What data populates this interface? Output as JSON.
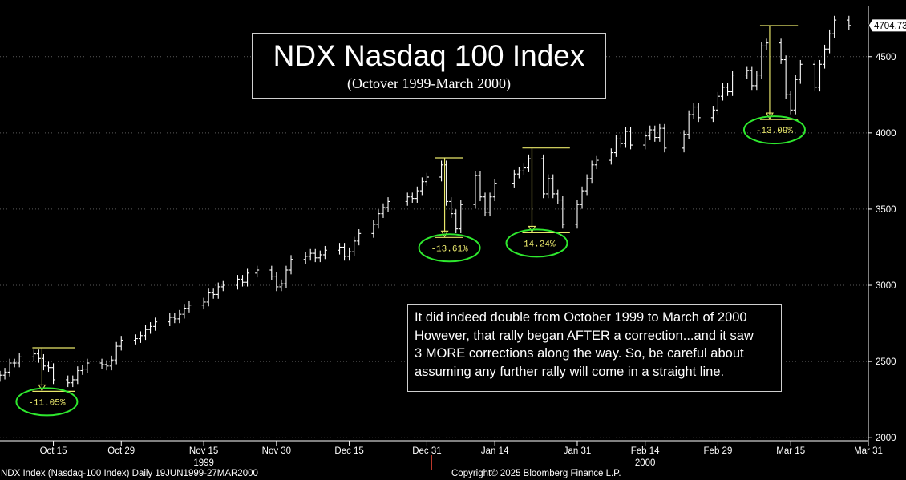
{
  "title_box": {
    "title": "NDX Nasdaq 100 Index",
    "subtitle": "(Octover 1999-March 2000)"
  },
  "annotation": {
    "lines": [
      "It did indeed double from October 1999 to March of 2000",
      "However, that rally began AFTER a correction...and it saw",
      "3 MORE corrections along the way.  So, be careful about",
      "assuming any further rally will come in a straight line."
    ]
  },
  "footer": {
    "left": "NDX Index (Nasdaq-100 Index) Daily 19JUN1999-27MAR2000",
    "right": "Copyright© 2025 Bloomberg Finance L.P."
  },
  "colors": {
    "background": "#000000",
    "bars": "#ffffff",
    "correction_lines": "#e8e66a",
    "correction_ellipse": "#2ee82e",
    "grid": "#5a5a5a"
  },
  "chart_data": {
    "type": "ohlc",
    "frequency": "Daily",
    "x_range": [
      "1999-10-04",
      "2000-03-31"
    ],
    "ylim": [
      1980,
      4830
    ],
    "grid": true,
    "grid_style": "dotted horizontal",
    "last_price": "4704.73",
    "y_ticks": [
      2000,
      2500,
      3000,
      3500,
      4000,
      4500
    ],
    "x_ticks": [
      {
        "date": "1999-10-15",
        "label": "Oct 15"
      },
      {
        "date": "1999-10-29",
        "label": "Oct 29"
      },
      {
        "date": "1999-11-15",
        "label": "Nov 15"
      },
      {
        "date": "1999-11-30",
        "label": "Nov 30"
      },
      {
        "date": "1999-12-15",
        "label": "Dec 15"
      },
      {
        "date": "1999-12-31",
        "label": "Dec 31"
      },
      {
        "date": "2000-01-14",
        "label": "Jan 14"
      },
      {
        "date": "2000-01-31",
        "label": "Jan 31"
      },
      {
        "date": "2000-02-14",
        "label": "Feb 14"
      },
      {
        "date": "2000-02-29",
        "label": "Feb 29"
      },
      {
        "date": "2000-03-15",
        "label": "Mar 15"
      },
      {
        "date": "2000-03-31",
        "label": "Mar 31"
      }
    ],
    "year_labels": [
      {
        "date": "1999-11-15",
        "label": "1999"
      },
      {
        "date": "2000-02-14",
        "label": "2000"
      }
    ],
    "closes": [
      [
        "1999-10-04",
        2410
      ],
      [
        "1999-10-05",
        2430
      ],
      [
        "1999-10-06",
        2490
      ],
      [
        "1999-10-07",
        2490
      ],
      [
        "1999-10-08",
        2530
      ],
      [
        "1999-10-11",
        2550
      ],
      [
        "1999-10-12",
        2520
      ],
      [
        "1999-10-13",
        2470
      ],
      [
        "1999-10-14",
        2460
      ],
      [
        "1999-10-15",
        2380
      ],
      [
        "1999-10-18",
        2360
      ],
      [
        "1999-10-19",
        2380
      ],
      [
        "1999-10-20",
        2440
      ],
      [
        "1999-10-21",
        2450
      ],
      [
        "1999-10-22",
        2490
      ],
      [
        "1999-10-25",
        2480
      ],
      [
        "1999-10-26",
        2470
      ],
      [
        "1999-10-27",
        2510
      ],
      [
        "1999-10-28",
        2600
      ],
      [
        "1999-10-29",
        2640
      ],
      [
        "1999-11-01",
        2650
      ],
      [
        "1999-11-02",
        2670
      ],
      [
        "1999-11-03",
        2710
      ],
      [
        "1999-11-04",
        2730
      ],
      [
        "1999-11-05",
        2760
      ],
      [
        "1999-11-08",
        2790
      ],
      [
        "1999-11-09",
        2780
      ],
      [
        "1999-11-10",
        2810
      ],
      [
        "1999-11-11",
        2850
      ],
      [
        "1999-11-12",
        2870
      ],
      [
        "1999-11-15",
        2890
      ],
      [
        "1999-11-16",
        2950
      ],
      [
        "1999-11-17",
        2940
      ],
      [
        "1999-11-18",
        2990
      ],
      [
        "1999-11-19",
        3000
      ],
      [
        "1999-11-22",
        3040
      ],
      [
        "1999-11-23",
        3020
      ],
      [
        "1999-11-24",
        3080
      ],
      [
        "1999-11-26",
        3100
      ],
      [
        "1999-11-29",
        3060
      ],
      [
        "1999-11-30",
        2990
      ],
      [
        "1999-12-01",
        3010
      ],
      [
        "1999-12-02",
        3100
      ],
      [
        "1999-12-03",
        3170
      ],
      [
        "1999-12-06",
        3190
      ],
      [
        "1999-12-07",
        3210
      ],
      [
        "1999-12-08",
        3180
      ],
      [
        "1999-12-09",
        3200
      ],
      [
        "1999-12-10",
        3230
      ],
      [
        "1999-12-13",
        3250
      ],
      [
        "1999-12-14",
        3190
      ],
      [
        "1999-12-15",
        3220
      ],
      [
        "1999-12-16",
        3290
      ],
      [
        "1999-12-17",
        3340
      ],
      [
        "1999-12-20",
        3400
      ],
      [
        "1999-12-21",
        3470
      ],
      [
        "1999-12-22",
        3510
      ],
      [
        "1999-12-23",
        3550
      ],
      [
        "1999-12-27",
        3580
      ],
      [
        "1999-12-28",
        3570
      ],
      [
        "1999-12-29",
        3620
      ],
      [
        "1999-12-30",
        3680
      ],
      [
        "1999-12-31",
        3710
      ],
      [
        "2000-01-03",
        3790
      ],
      [
        "2000-01-04",
        3550
      ],
      [
        "2000-01-05",
        3470
      ],
      [
        "2000-01-06",
        3370
      ],
      [
        "2000-01-07",
        3530
      ],
      [
        "2000-01-10",
        3720
      ],
      [
        "2000-01-11",
        3580
      ],
      [
        "2000-01-12",
        3480
      ],
      [
        "2000-01-13",
        3580
      ],
      [
        "2000-01-14",
        3670
      ],
      [
        "2000-01-18",
        3730
      ],
      [
        "2000-01-19",
        3750
      ],
      [
        "2000-01-20",
        3770
      ],
      [
        "2000-01-21",
        3830
      ],
      [
        "2000-01-24",
        3600
      ],
      [
        "2000-01-25",
        3700
      ],
      [
        "2000-01-26",
        3600
      ],
      [
        "2000-01-27",
        3560
      ],
      [
        "2000-01-28",
        3400
      ],
      [
        "2000-01-31",
        3530
      ],
      [
        "2000-02-01",
        3620
      ],
      [
        "2000-02-02",
        3700
      ],
      [
        "2000-02-03",
        3790
      ],
      [
        "2000-02-04",
        3820
      ],
      [
        "2000-02-07",
        3870
      ],
      [
        "2000-02-08",
        3960
      ],
      [
        "2000-02-09",
        3930
      ],
      [
        "2000-02-10",
        4010
      ],
      [
        "2000-02-11",
        3920
      ],
      [
        "2000-02-14",
        3980
      ],
      [
        "2000-02-15",
        4020
      ],
      [
        "2000-02-16",
        3970
      ],
      [
        "2000-02-17",
        4030
      ],
      [
        "2000-02-18",
        3900
      ],
      [
        "2000-02-22",
        3990
      ],
      [
        "2000-02-23",
        4120
      ],
      [
        "2000-02-24",
        4170
      ],
      [
        "2000-02-25",
        4100
      ],
      [
        "2000-02-28",
        4150
      ],
      [
        "2000-02-29",
        4240
      ],
      [
        "2000-03-01",
        4300
      ],
      [
        "2000-03-02",
        4270
      ],
      [
        "2000-03-03",
        4380
      ],
      [
        "2000-03-06",
        4410
      ],
      [
        "2000-03-07",
        4310
      ],
      [
        "2000-03-08",
        4380
      ],
      [
        "2000-03-09",
        4570
      ],
      [
        "2000-03-10",
        4590
      ],
      [
        "2000-03-13",
        4480
      ],
      [
        "2000-03-14",
        4250
      ],
      [
        "2000-03-15",
        4150
      ],
      [
        "2000-03-16",
        4350
      ],
      [
        "2000-03-17",
        4450
      ],
      [
        "2000-03-20",
        4300
      ],
      [
        "2000-03-21",
        4450
      ],
      [
        "2000-03-22",
        4550
      ],
      [
        "2000-03-23",
        4650
      ],
      [
        "2000-03-24",
        4740
      ],
      [
        "2000-03-27",
        4704.73
      ]
    ],
    "corrections": [
      {
        "label": "-11.05%",
        "peak_date": "1999-10-12",
        "trough_date": "1999-10-18",
        "peak": 2590,
        "trough": 2304
      },
      {
        "label": "-13.61%",
        "peak_date": "2000-01-03",
        "trough_date": "2000-01-06",
        "peak": 3836,
        "trough": 3314
      },
      {
        "label": "-14.24%",
        "peak_date": "2000-01-21",
        "trough_date": "2000-01-28",
        "peak": 3901,
        "trough": 3345
      },
      {
        "label": "-13.09%",
        "peak_date": "2000-03-10",
        "trough_date": "2000-03-15",
        "peak": 4704,
        "trough": 4088
      }
    ]
  }
}
